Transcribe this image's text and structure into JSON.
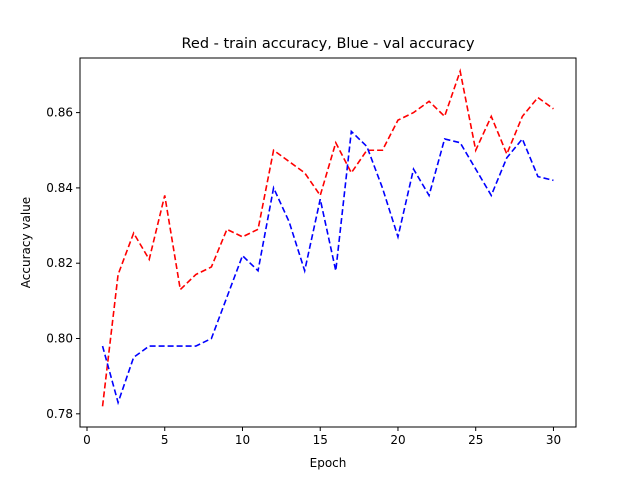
{
  "chart_data": {
    "type": "line",
    "title": "Red - train accuracy, Blue - val accuracy",
    "xlabel": "Epoch",
    "ylabel": "Accuracy value",
    "xlim": [
      -0.45,
      31.45
    ],
    "ylim": [
      0.7765,
      0.8745
    ],
    "xticks": [
      0,
      5,
      10,
      15,
      20,
      25,
      30
    ],
    "xtick_labels": [
      "0",
      "5",
      "10",
      "15",
      "20",
      "25",
      "30"
    ],
    "yticks": [
      0.78,
      0.8,
      0.82,
      0.84,
      0.86
    ],
    "ytick_labels": [
      "0.78",
      "0.80",
      "0.82",
      "0.84",
      "0.86"
    ],
    "grid": false,
    "legend": "none",
    "x": [
      1,
      2,
      3,
      4,
      5,
      6,
      7,
      8,
      9,
      10,
      11,
      12,
      13,
      14,
      15,
      16,
      17,
      18,
      19,
      20,
      21,
      22,
      23,
      24,
      25,
      26,
      27,
      28,
      29,
      30
    ],
    "series": [
      {
        "color": "#ff0000",
        "style": "dashed",
        "values": [
          0.782,
          0.817,
          0.828,
          0.821,
          0.838,
          0.813,
          0.817,
          0.819,
          0.829,
          0.827,
          0.829,
          0.85,
          0.847,
          0.844,
          0.838,
          0.852,
          0.844,
          0.85,
          0.85,
          0.858,
          0.86,
          0.863,
          0.859,
          0.871,
          0.85,
          0.859,
          0.849,
          0.859,
          0.864,
          0.861
        ]
      },
      {
        "color": "#0000ff",
        "style": "dashed",
        "values": [
          0.798,
          0.783,
          0.795,
          0.798,
          0.798,
          0.798,
          0.798,
          0.8,
          0.811,
          0.822,
          0.818,
          0.84,
          0.831,
          0.818,
          0.837,
          0.818,
          0.855,
          0.851,
          0.84,
          0.827,
          0.845,
          0.838,
          0.853,
          0.852,
          0.845,
          0.838,
          0.848,
          0.853,
          0.843,
          0.842
        ]
      }
    ]
  }
}
